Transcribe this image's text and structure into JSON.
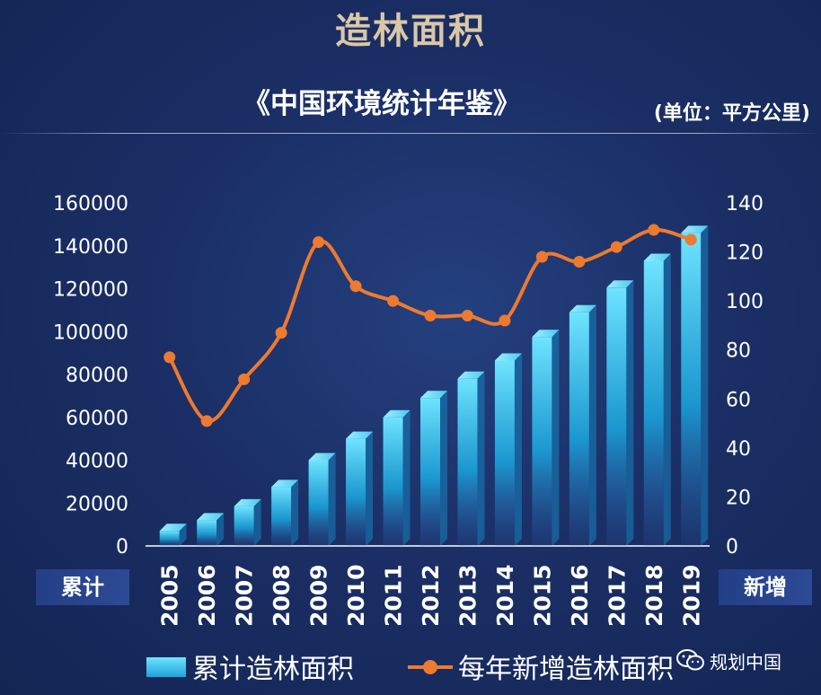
{
  "page": {
    "title": "造林面积",
    "subtitle": "《中国环境统计年鉴》",
    "unit": "(单位：平方公里)",
    "left_axis_tag": "累计",
    "right_axis_tag": "新增",
    "watermark_text": "规划中国",
    "watermark_icon": "wechat-icon"
  },
  "colors": {
    "bar_top": "#6fe4ff",
    "bar_bottom": "#1aa2da",
    "line": "#ee7a2f",
    "title": "#d9c7a6"
  },
  "chart_data": {
    "type": "bar+line",
    "categories": [
      "2005",
      "2006",
      "2007",
      "2008",
      "2009",
      "2010",
      "2011",
      "2012",
      "2013",
      "2014",
      "2015",
      "2016",
      "2017",
      "2018",
      "2019"
    ],
    "series": [
      {
        "name": "累计造林面积",
        "type": "bar",
        "axis": "left",
        "values": [
          7000,
          12000,
          18500,
          27500,
          40000,
          50000,
          60000,
          69000,
          78000,
          86500,
          97500,
          109000,
          120500,
          133000,
          146000
        ]
      },
      {
        "name": "每年新增造林面积",
        "type": "line",
        "axis": "right",
        "values": [
          77,
          51,
          68,
          87,
          124,
          106,
          100,
          94,
          94,
          92,
          118,
          116,
          122,
          129,
          125
        ]
      }
    ],
    "y_left": {
      "min": 0,
      "max": 160000,
      "ticks": [
        0,
        20000,
        40000,
        60000,
        80000,
        100000,
        120000,
        140000,
        160000
      ]
    },
    "y_right": {
      "min": 0,
      "max": 140,
      "ticks": [
        0,
        20,
        40,
        60,
        80,
        100,
        120,
        140
      ]
    },
    "grid": false,
    "legend": "bottom"
  }
}
